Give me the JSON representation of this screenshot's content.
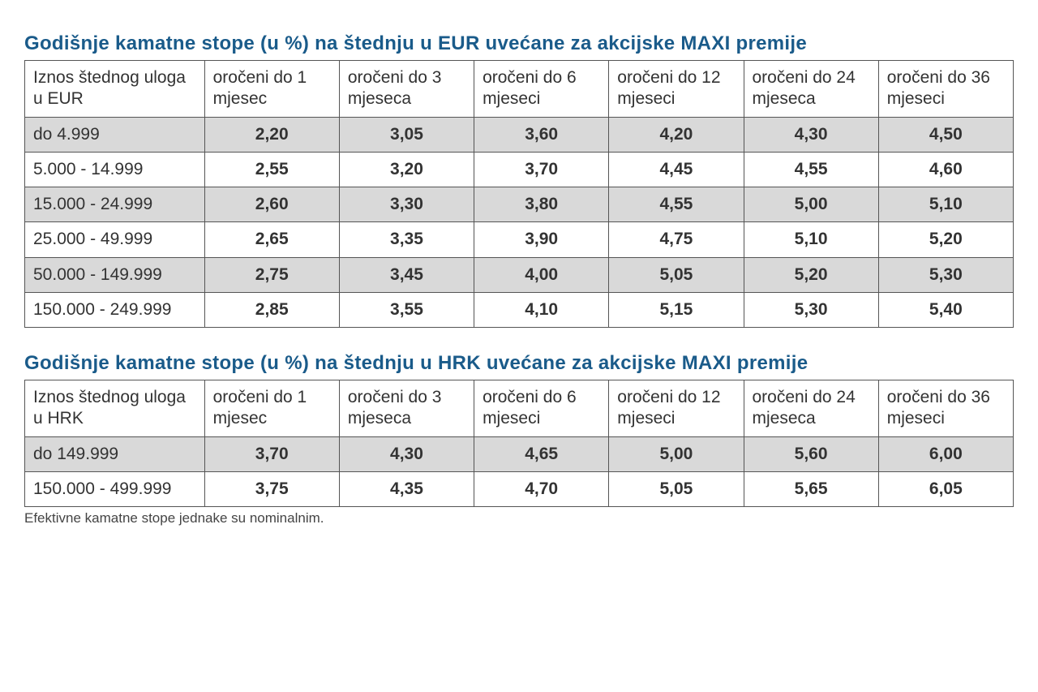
{
  "table_eur": {
    "title": "Godišnje kamatne stope (u %) na štednju u EUR uvećane za akcijske MAXI premije",
    "header_first": "Iznos štednog uloga u EUR",
    "columns": [
      "oročeni do 1 mjesec",
      "oročeni do 3 mjeseca",
      "oročeni do 6 mjeseci",
      "oročeni do 12 mjeseci",
      "oročeni do 24 mjeseca",
      "oročeni do 36 mjeseci"
    ],
    "rows": [
      {
        "range": "do 4.999",
        "values": [
          "2,20",
          "3,05",
          "3,60",
          "4,20",
          "4,30",
          "4,50"
        ],
        "shaded": true
      },
      {
        "range": "5.000 - 14.999",
        "values": [
          "2,55",
          "3,20",
          "3,70",
          "4,45",
          "4,55",
          "4,60"
        ],
        "shaded": false
      },
      {
        "range": "15.000 - 24.999",
        "values": [
          "2,60",
          "3,30",
          "3,80",
          "4,55",
          "5,00",
          "5,10"
        ],
        "shaded": true
      },
      {
        "range": "25.000 - 49.999",
        "values": [
          "2,65",
          "3,35",
          "3,90",
          "4,75",
          "5,10",
          "5,20"
        ],
        "shaded": false
      },
      {
        "range": "50.000 - 149.999",
        "values": [
          "2,75",
          "3,45",
          "4,00",
          "5,05",
          "5,20",
          "5,30"
        ],
        "shaded": true
      },
      {
        "range": "150.000 - 249.999",
        "values": [
          "2,85",
          "3,55",
          "4,10",
          "5,15",
          "5,30",
          "5,40"
        ],
        "shaded": false
      }
    ]
  },
  "table_hrk": {
    "title": "Godišnje kamatne stope (u %) na štednju u HRK uvećane za akcijske MAXI premije",
    "header_first": "Iznos štednog uloga u HRK",
    "columns": [
      "oročeni do 1 mjesec",
      "oročeni do 3 mjeseca",
      "oročeni do 6 mjeseci",
      "oročeni do 12 mjeseci",
      "oročeni do 24 mjeseca",
      "oročeni do 36 mjeseci"
    ],
    "rows": [
      {
        "range": "do 149.999",
        "values": [
          "3,70",
          "4,30",
          "4,65",
          "5,00",
          "5,60",
          "6,00"
        ],
        "shaded": true
      },
      {
        "range": "150.000 - 499.999",
        "values": [
          "3,75",
          "4,35",
          "4,70",
          "5,05",
          "5,65",
          "6,05"
        ],
        "shaded": false
      }
    ]
  },
  "footnote": "Efektivne kamatne stope jednake su nominalnim.",
  "styling": {
    "title_color": "#1a5b8a",
    "title_fontsize": 24,
    "cell_fontsize": 21,
    "footnote_fontsize": 17,
    "border_color": "#555555",
    "shaded_bg": "#d9d9d9",
    "unshaded_bg": "#ffffff",
    "text_color": "#333333"
  }
}
